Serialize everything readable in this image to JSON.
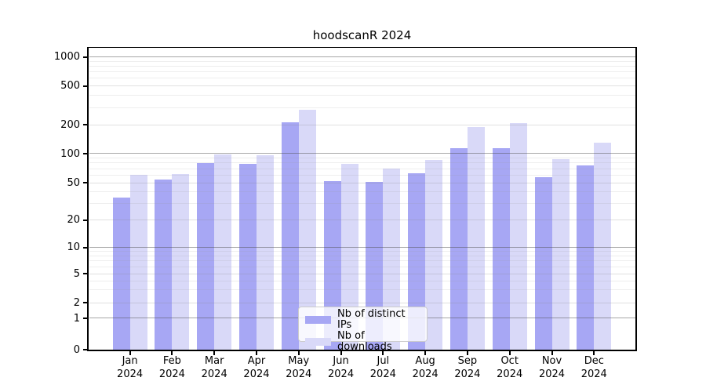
{
  "title": "hoodscanR 2024",
  "chart_data": {
    "type": "bar",
    "title": "hoodscanR 2024",
    "categories": [
      "Jan",
      "Feb",
      "Mar",
      "Apr",
      "May",
      "Jun",
      "Jul",
      "Aug",
      "Sep",
      "Oct",
      "Nov",
      "Dec"
    ],
    "year_label": "2024",
    "series": [
      {
        "name": "Nb of distinct IPs",
        "color": "#a7a7f4",
        "values": [
          35,
          54,
          80,
          79,
          210,
          52,
          51,
          63,
          113,
          114,
          57,
          75
        ]
      },
      {
        "name": "Nb of downloads",
        "color": "#d9d9f8",
        "values": [
          60,
          62,
          99,
          96,
          285,
          78,
          70,
          86,
          190,
          207,
          88,
          131
        ]
      }
    ],
    "yticks": [
      0,
      1,
      2,
      5,
      10,
      20,
      50,
      100,
      200,
      500,
      1000
    ],
    "yscale": "symlog",
    "ylim": [
      0,
      1250
    ],
    "xlabel": "",
    "ylabel": "",
    "grid": true,
    "legend_position": "lower center"
  }
}
